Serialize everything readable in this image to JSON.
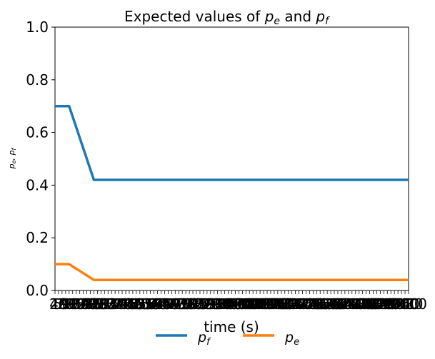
{
  "chart_data": {
    "type": "line",
    "title": "Expected values of p_e and p_f",
    "title_parts": {
      "prefix": "Expected values of ",
      "s1": "p",
      "s1_sub": "e",
      "mid": " and ",
      "s2": "p",
      "s2_sub": "f"
    },
    "xlabel": "time (s)",
    "ylabel": "p_e, p_f",
    "ylabel_parts": {
      "a": "p",
      "a_sub": "e",
      "sep": ", ",
      "b": "p",
      "b_sub": "f"
    },
    "xlim": [
      0,
      2000
    ],
    "ylim": [
      0,
      1
    ],
    "yticks": [
      "0.0",
      "0.2",
      "0.4",
      "0.6",
      "0.8",
      "1.0"
    ],
    "xtick_count": 101,
    "xtick_labels_first": "20",
    "xtick_labels_last": "2000",
    "legend_position": "bottom-center",
    "grid": false,
    "series": [
      {
        "name": "p_f",
        "name_parts": {
          "base": "p",
          "sub": "f"
        },
        "color": "#1f77b4",
        "x": [
          0,
          80,
          220,
          2000
        ],
        "values": [
          0.7,
          0.7,
          0.42,
          0.42
        ]
      },
      {
        "name": "p_e",
        "name_parts": {
          "base": "p",
          "sub": "e"
        },
        "color": "#ff7f0e",
        "x": [
          0,
          80,
          220,
          2000
        ],
        "values": [
          0.1,
          0.1,
          0.04,
          0.04
        ]
      }
    ]
  }
}
